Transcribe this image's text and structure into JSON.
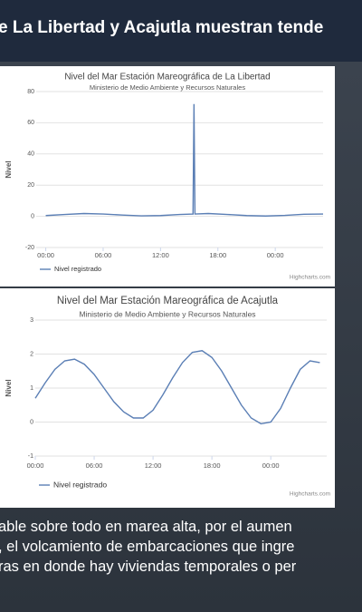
{
  "header": {
    "title": "e La Libertad y Acajutla muestran tende"
  },
  "chart_data": [
    {
      "type": "line",
      "title": "Nivel del Mar Estación Mareográfica de La Libertad",
      "subtitle": "Ministerio de Medio Ambiente y Recursos Naturales",
      "ylabel": "Nivel",
      "credit": "Highcharts.com",
      "x": [
        0,
        2,
        4,
        6,
        8,
        10,
        12,
        14,
        15.4,
        15.5,
        15.6,
        17,
        19,
        21,
        23,
        25,
        27,
        29
      ],
      "series": [
        {
          "name": "Nivel registrado",
          "color": "#5b7fb5",
          "values": [
            0.5,
            1.2,
            1.8,
            1.5,
            0.8,
            0.3,
            0.5,
            1.2,
            1.5,
            72,
            1.5,
            1.8,
            1.2,
            0.5,
            0.2,
            0.6,
            1.3,
            1.5
          ]
        }
      ],
      "xlim": [
        -1,
        29
      ],
      "xticks": [
        {
          "value": 0,
          "label": "00:00"
        },
        {
          "value": 6,
          "label": "06:00"
        },
        {
          "value": 12,
          "label": "12:00"
        },
        {
          "value": 18,
          "label": "18:00"
        },
        {
          "value": 24,
          "label": "00:00"
        }
      ],
      "ylim": [
        -20,
        80
      ],
      "yticks": [
        -20,
        0,
        20,
        40,
        60,
        80
      ],
      "grid": true
    },
    {
      "type": "line",
      "title": "Nivel del Mar Estación Mareográfica de Acajutla",
      "subtitle": "Ministerio de Medio Ambiente y Recursos Naturales",
      "ylabel": "Nivel",
      "credit": "Highcharts.com",
      "x": [
        0,
        1,
        2,
        3,
        4,
        5,
        6,
        7,
        8,
        9,
        10,
        11,
        12,
        13,
        14,
        15,
        16,
        17,
        18,
        19,
        20,
        21,
        22,
        23,
        24,
        25,
        26,
        27,
        28,
        29
      ],
      "series": [
        {
          "name": "Nivel registrado",
          "color": "#5b7fb5",
          "values": [
            0.7,
            1.15,
            1.55,
            1.8,
            1.85,
            1.7,
            1.4,
            1.0,
            0.6,
            0.3,
            0.12,
            0.12,
            0.35,
            0.8,
            1.3,
            1.75,
            2.05,
            2.1,
            1.9,
            1.5,
            1.0,
            0.5,
            0.12,
            -0.05,
            0.0,
            0.4,
            1.0,
            1.55,
            1.8,
            1.75
          ]
        }
      ],
      "xlim": [
        0,
        29.7
      ],
      "xticks": [
        {
          "value": 0,
          "label": "00:00"
        },
        {
          "value": 6,
          "label": "06:00"
        },
        {
          "value": 12,
          "label": "12:00"
        },
        {
          "value": 18,
          "label": "18:00"
        },
        {
          "value": 24,
          "label": "00:00"
        }
      ],
      "ylim": [
        -1,
        3
      ],
      "yticks": [
        -1,
        0,
        1,
        2,
        3
      ],
      "grid": true
    }
  ],
  "footer": {
    "lines": [
      "able sobre todo en marea alta, por el aumen",
      ", el volcamiento de embarcaciones que ingre",
      "ras en donde hay viviendas temporales o per"
    ]
  }
}
